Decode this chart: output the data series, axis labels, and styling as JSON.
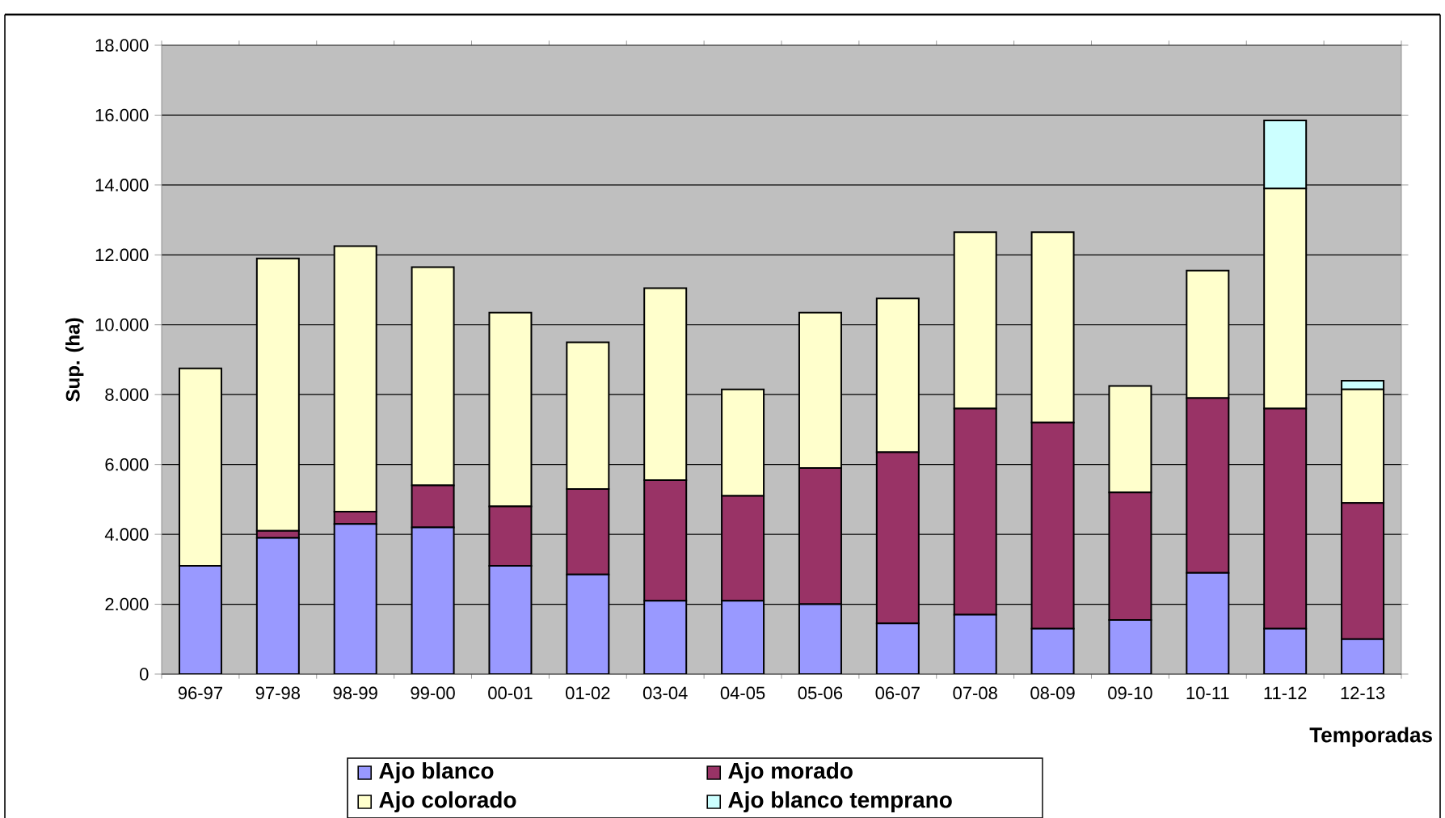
{
  "chart_data": {
    "type": "bar",
    "stacked": true,
    "xlabel": "Temporadas",
    "ylabel": "Sup. (ha)",
    "categories": [
      "96-97",
      "97-98",
      "98-99",
      "99-00",
      "00-01",
      "01-02",
      "03-04",
      "04-05",
      "05-06",
      "06-07",
      "07-08",
      "08-09",
      "09-10",
      "10-11",
      "11-12",
      "12-13"
    ],
    "series": [
      {
        "name": "Ajo blanco",
        "color": "#9999ff",
        "values": [
          3100,
          3900,
          4300,
          4200,
          3100,
          2850,
          2100,
          2100,
          2000,
          1450,
          1700,
          1300,
          1550,
          2900,
          1300,
          1000
        ]
      },
      {
        "name": "Ajo morado",
        "color": "#993366",
        "values": [
          0,
          200,
          350,
          1200,
          1700,
          2450,
          3450,
          3000,
          3900,
          4900,
          5900,
          5900,
          3650,
          5000,
          6300,
          3900
        ]
      },
      {
        "name": "Ajo colorado",
        "color": "#ffffcc",
        "values": [
          5650,
          7800,
          7600,
          6250,
          5550,
          4200,
          5500,
          3050,
          4450,
          4400,
          5050,
          5450,
          3050,
          3650,
          6300,
          3250
        ]
      },
      {
        "name": "Ajo blanco temprano",
        "color": "#ccffff",
        "values": [
          null,
          null,
          null,
          null,
          null,
          null,
          null,
          null,
          null,
          null,
          null,
          null,
          null,
          null,
          1950,
          250
        ]
      }
    ],
    "ylim": [
      0,
      18000
    ],
    "yticks": [
      0,
      {
        "value": 2000,
        "label": "2.000"
      },
      {
        "value": 4000,
        "label": "4.000"
      },
      {
        "value": 6000,
        "label": "6.000"
      },
      {
        "value": 8000,
        "label": "8.000"
      },
      {
        "value": 10000,
        "label": "10.000"
      },
      {
        "value": 12000,
        "label": "12.000"
      },
      {
        "value": 14000,
        "label": "14.000"
      },
      {
        "value": 16000,
        "label": "16.000"
      },
      {
        "value": 18000,
        "label": "18.000"
      }
    ],
    "grid": "y",
    "legend": "bottom"
  }
}
